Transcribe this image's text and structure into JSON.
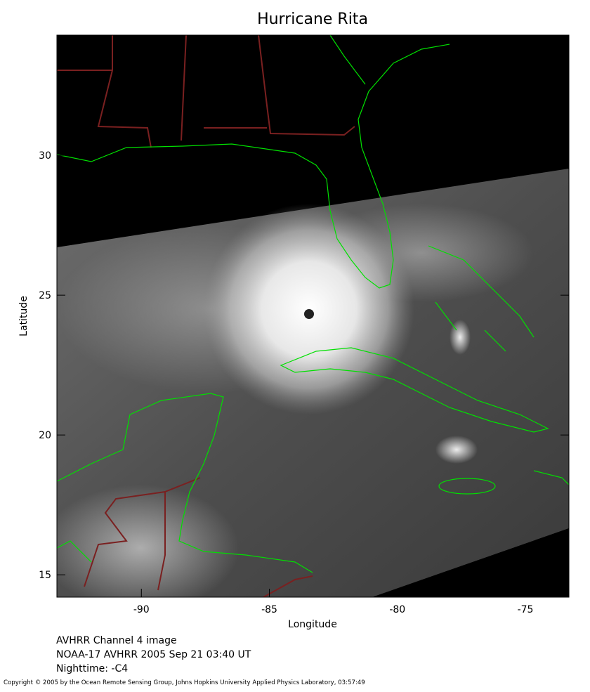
{
  "chart_data": {
    "type": "image",
    "title": "Hurricane Rita",
    "xlabel": "Longitude",
    "ylabel": "Latitude",
    "xlim": [
      -93.3,
      -73.3
    ],
    "ylim": [
      14.2,
      34.3
    ],
    "xticks": [
      -90,
      -85,
      -80,
      -75
    ],
    "yticks": [
      15,
      20,
      25,
      30
    ],
    "notes": [
      "AVHRR Channel 4 image",
      "NOAA-17 AVHRR 2005 Sep 21 03:40 UT",
      "Nighttime: -C4"
    ],
    "copyright": "Copyright © 2005 by the Ocean Remote Sensing Group, Johns Hopkins University Applied Physics Laboratory, 03:57:49"
  }
}
